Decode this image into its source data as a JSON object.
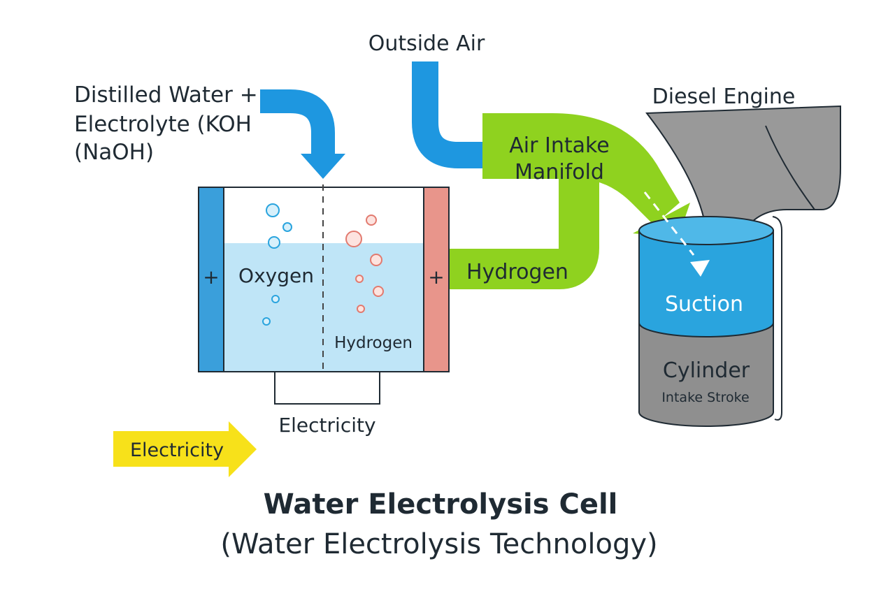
{
  "labels": {
    "outside_air": "Outside Air",
    "water_line1": "Distilled Water +",
    "water_line2": "Electrolyte (KOH",
    "water_line3": "(NaOH)",
    "diesel_engine": "Diesel Engine",
    "manifold_line1": "Air Intake",
    "manifold_line2": "Manifold",
    "hydrogen_pipe": "Hydrogen",
    "anode_sign": "+",
    "cathode_sign": "+",
    "oxygen": "Oxygen",
    "hydrogen_cell": "Hydrogen",
    "electricity_wire": "Electricity",
    "electricity_arrow": "Electricity",
    "suction": "Suction",
    "cylinder": "Cylinder",
    "intake_stroke": "Intake Stroke",
    "title": "Water Electrolysis Cell",
    "subtitle": "(Water Electrolysis Technology)"
  },
  "colors": {
    "water_blue": "#1e97e0",
    "green": "#8fd21f",
    "yellow": "#f7e11a",
    "electrolyte": "#bfe5f7",
    "anode": "#3a9fdb",
    "cathode": "#e8958b",
    "engine_gray": "#8f8f8f",
    "suction_blue": "#2aa4de"
  }
}
